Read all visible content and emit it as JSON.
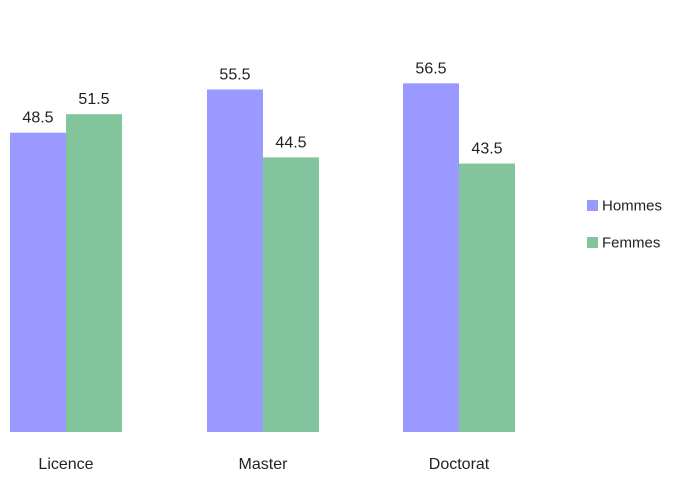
{
  "chart_data": {
    "type": "bar",
    "categories": [
      "Licence",
      "Master",
      "Doctorat"
    ],
    "series": [
      {
        "name": "Hommes",
        "values": [
          48.5,
          55.5,
          56.5
        ],
        "color": "#9999ff"
      },
      {
        "name": "Femmes",
        "values": [
          51.5,
          44.5,
          43.5
        ],
        "color": "#82c49c"
      }
    ],
    "title": "",
    "xlabel": "",
    "ylabel": "",
    "ylim": [
      0,
      70
    ],
    "grid": false,
    "legend": "right"
  }
}
